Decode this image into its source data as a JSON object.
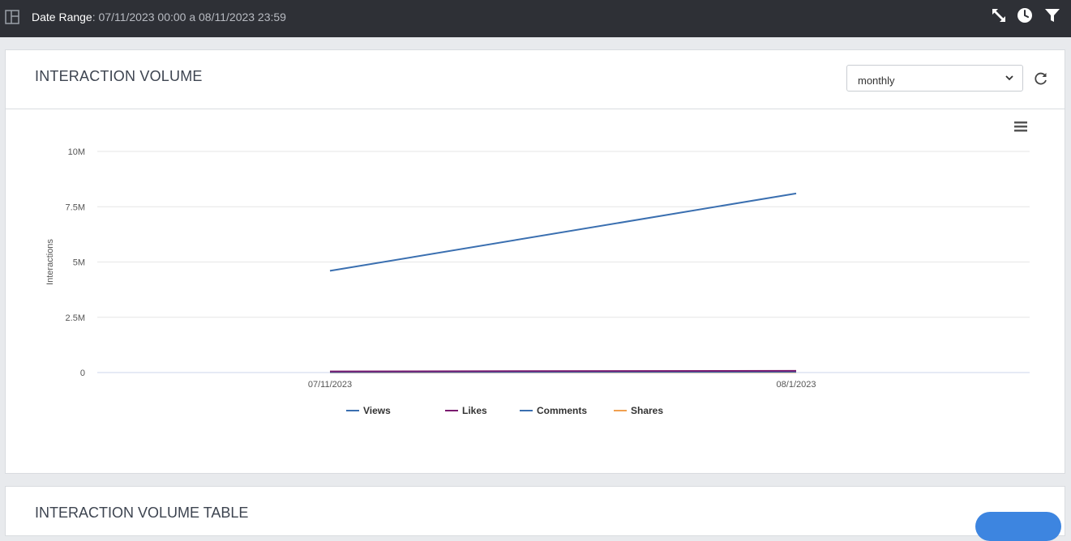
{
  "topbar": {
    "date_range_label": "Date Range",
    "date_range_value": ": 07/11/2023 00:00 a 08/11/2023 23:59",
    "icons": [
      "layout-icon",
      "expand-icon",
      "clock-icon",
      "filter-icon"
    ]
  },
  "panel": {
    "title": "INTERACTION VOLUME",
    "period_select": {
      "value": "monthly"
    },
    "icons": [
      "chevron-down-icon",
      "refresh-icon",
      "menu-icon"
    ]
  },
  "chart_data": {
    "type": "line",
    "title": "",
    "xlabel": "",
    "ylabel": "Interactions",
    "categories": [
      "07/11/2023",
      "08/1/2023"
    ],
    "yticks": [
      "0",
      "2.5M",
      "5M",
      "7.5M",
      "10M"
    ],
    "ylim": [
      0,
      10000000
    ],
    "grid": true,
    "legend_position": "bottom",
    "series": [
      {
        "name": "Views",
        "color": "#3a6fb0",
        "values": [
          4600000,
          8100000
        ]
      },
      {
        "name": "Likes",
        "color": "#7a1a6e",
        "values": [
          50000,
          80000
        ]
      },
      {
        "name": "Comments",
        "color": "#3a6fb0",
        "values": [
          20000,
          30000
        ]
      },
      {
        "name": "Shares",
        "color": "#f0a050",
        "values": [
          10000,
          15000
        ]
      }
    ]
  },
  "table_panel": {
    "title": "INTERACTION VOLUME TABLE"
  },
  "colors": {
    "topbar_bg": "#2e3036",
    "accent_button": "#3d85e0"
  }
}
